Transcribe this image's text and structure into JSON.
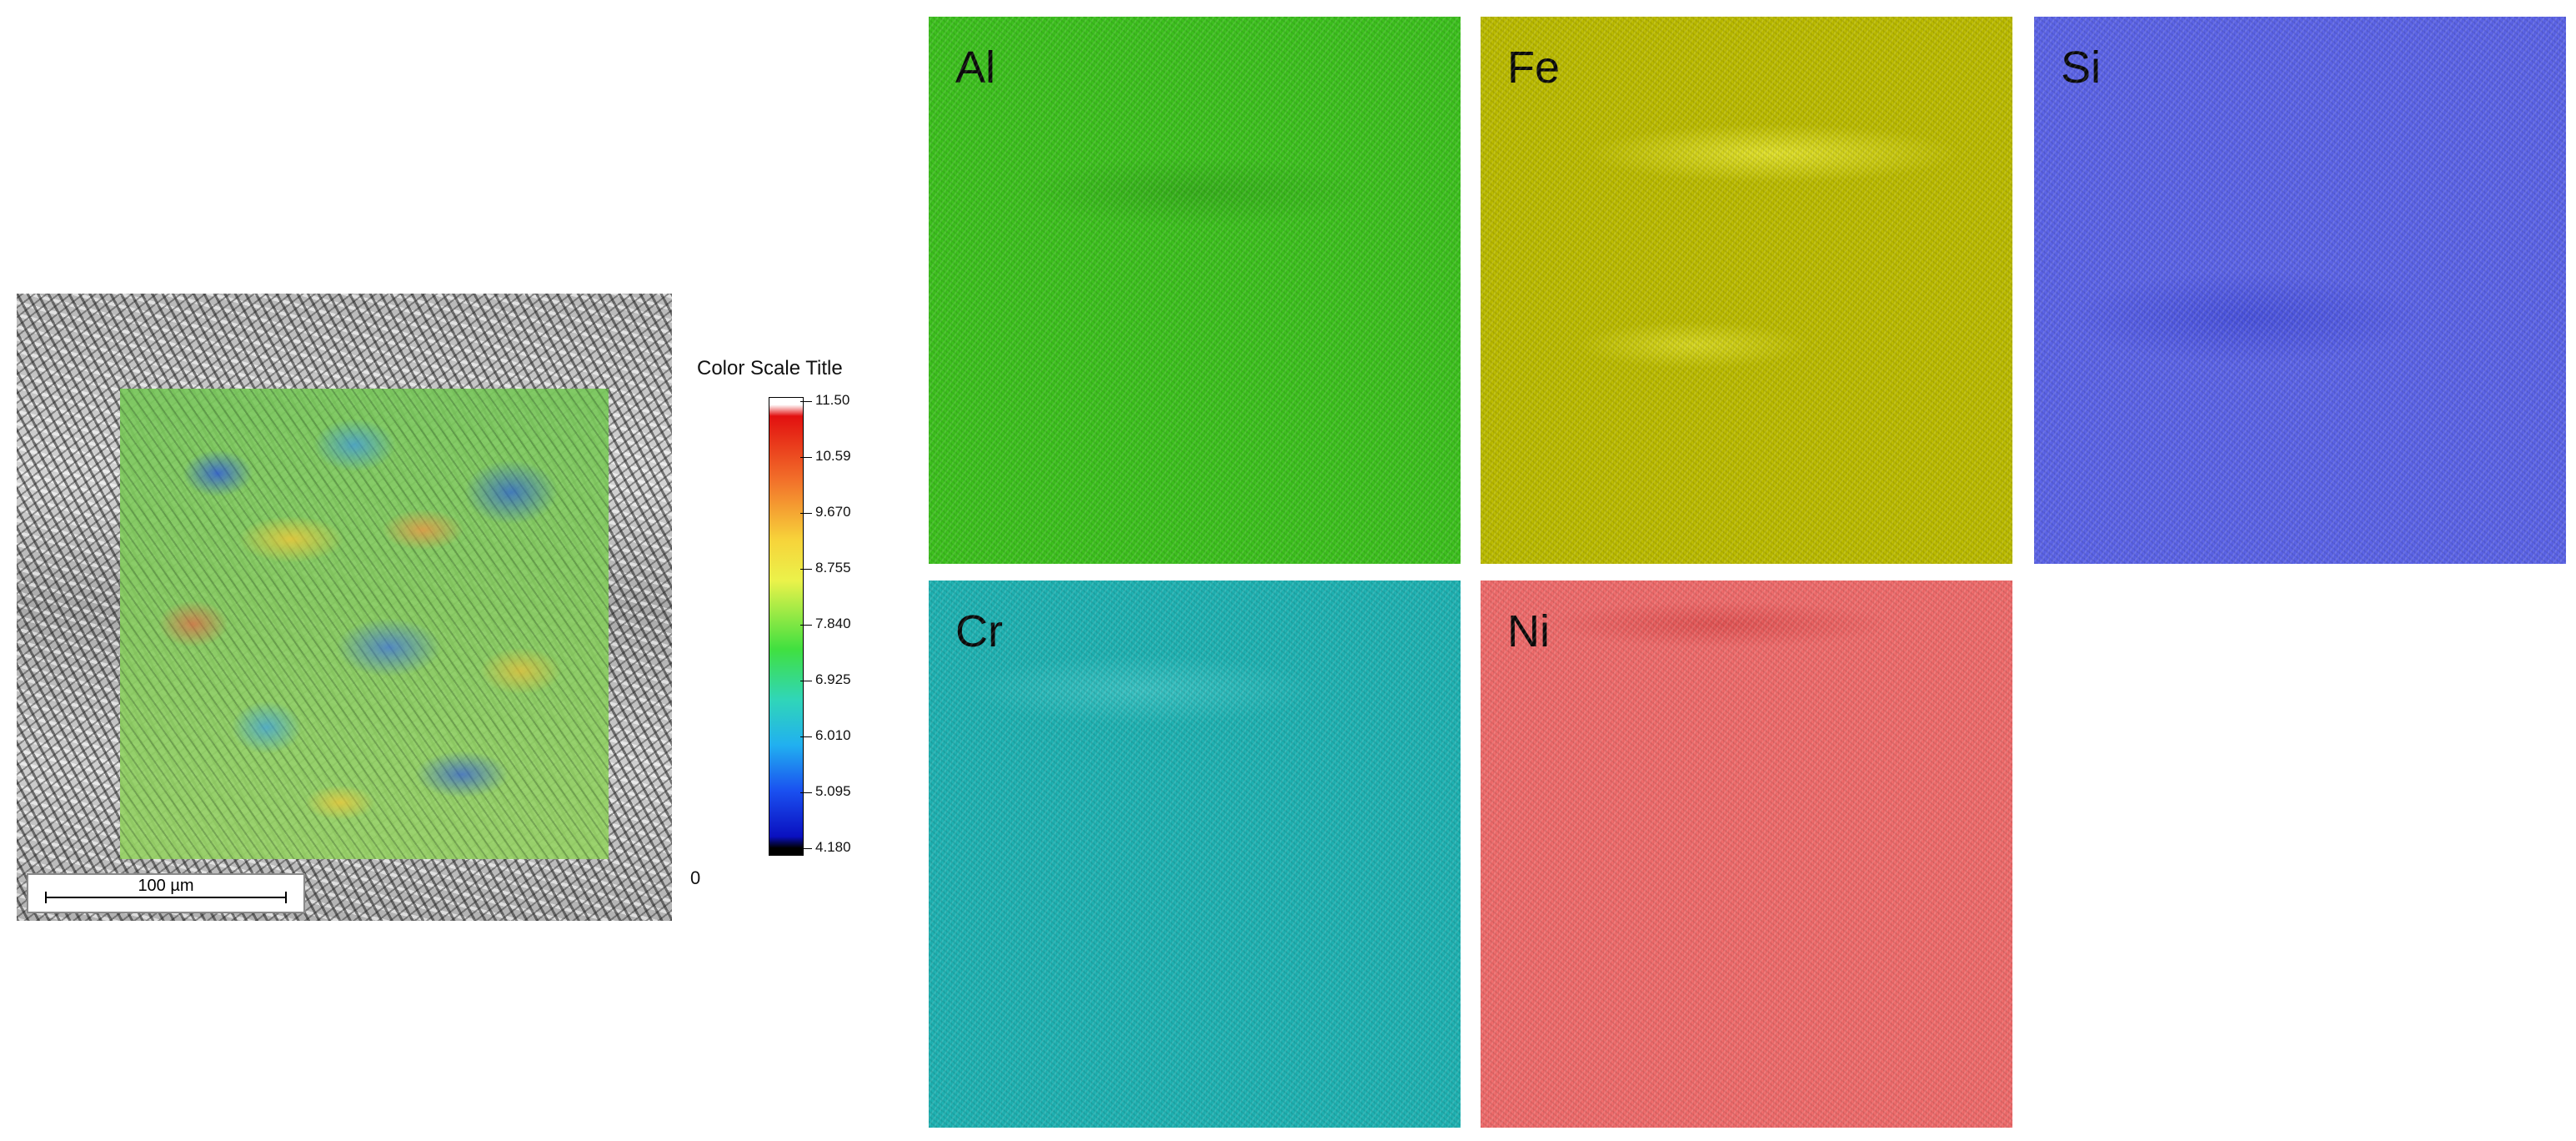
{
  "micrograph": {
    "scale_bar_label": "100 µm",
    "stray_mark": "0"
  },
  "color_scale": {
    "title": "Color Scale Title",
    "ticks": [
      "11.50",
      "10.59",
      "9.670",
      "8.755",
      "7.840",
      "6.925",
      "6.010",
      "5.095",
      "4.180"
    ],
    "colors": [
      "#ffffff",
      "#e21010",
      "#f7d33a",
      "#40e040",
      "#21b0f0",
      "#0a10c0",
      "#000000"
    ]
  },
  "element_maps": [
    {
      "label": "Al",
      "color": "#3dc21e"
    },
    {
      "label": "Fe",
      "color": "#bcbc00"
    },
    {
      "label": "Si",
      "color": "#5c64e8"
    },
    {
      "label": "Cr",
      "color": "#1fb3b3"
    },
    {
      "label": "Ni",
      "color": "#f06c6c"
    }
  ]
}
